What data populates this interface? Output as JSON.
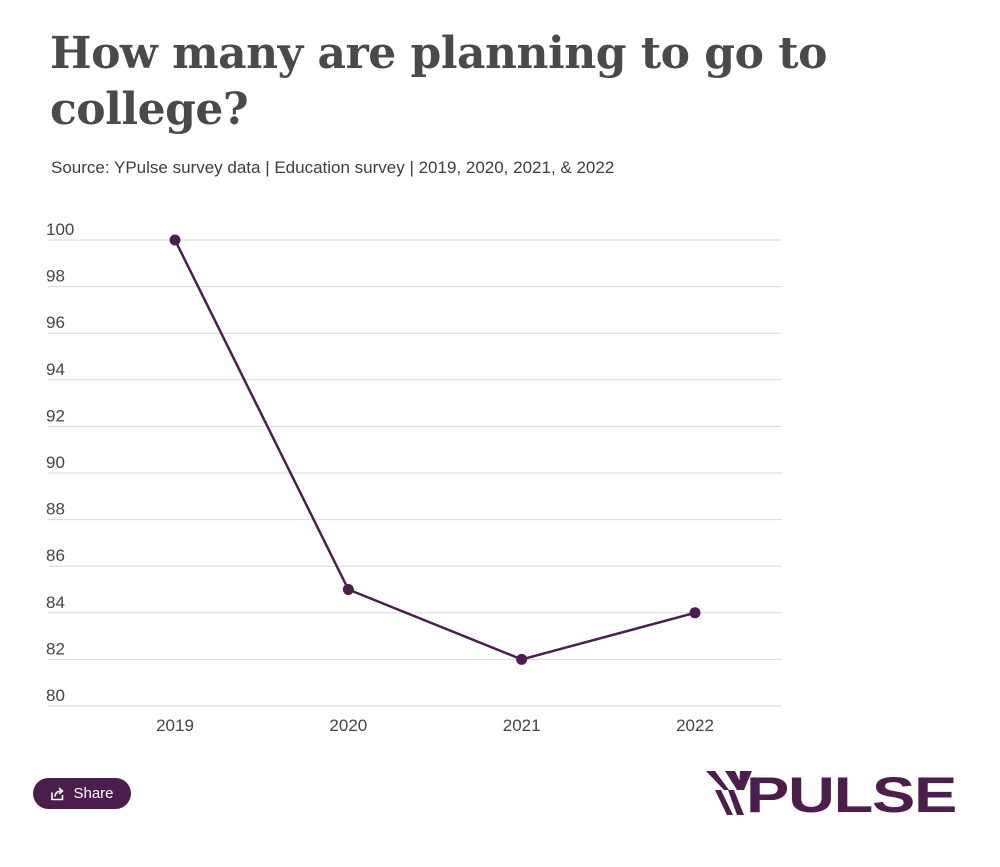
{
  "header": {
    "title": "How many are planning to go to college?",
    "subtitle": "Source: YPulse survey data | Education survey | 2019, 2020, 2021, & 2022"
  },
  "chart_data": {
    "type": "line",
    "categories": [
      "2019",
      "2020",
      "2021",
      "2022"
    ],
    "series": [
      {
        "values": [
          100,
          85,
          82,
          84
        ]
      }
    ],
    "ylim": [
      80,
      100
    ],
    "yticks": [
      100,
      98,
      96,
      94,
      92,
      90,
      88,
      86,
      84,
      82,
      80
    ],
    "grid": true,
    "line_color": "#4b1e4e",
    "grid_color": "#d9d9d9"
  },
  "footer": {
    "share_label": "Share",
    "logo_text": "YPULSE",
    "brand_color": "#4b1e4e"
  }
}
